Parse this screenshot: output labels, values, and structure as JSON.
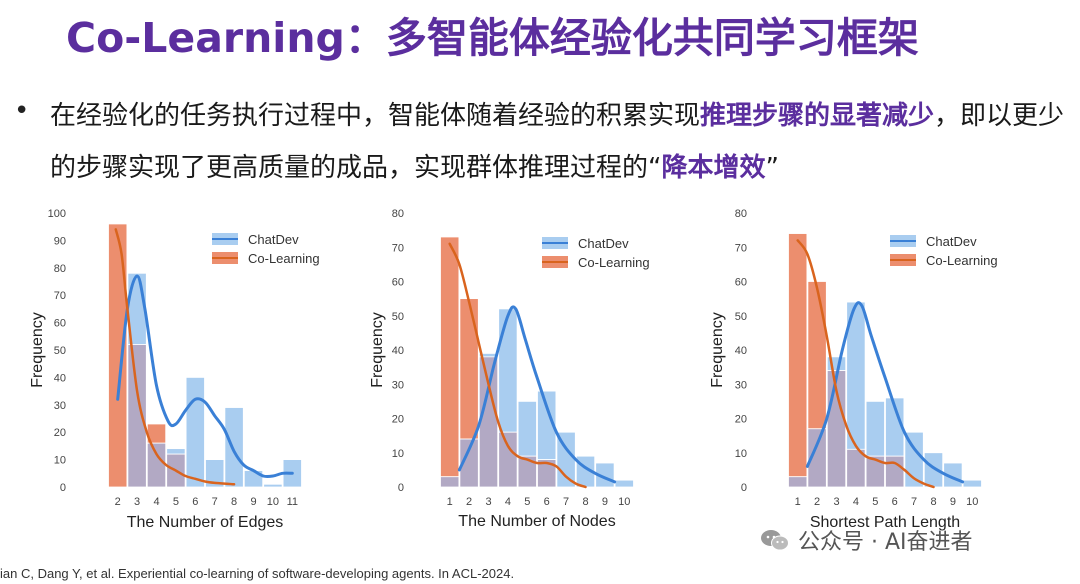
{
  "slide": {
    "title": "Co-Learning：多智能体经验化共同学习框架",
    "bullet_part1": "在经验化的任务执行过程中，智能体随着经验的积累实现",
    "bullet_highlight1": "推理步骤的显著减少",
    "bullet_part2": "，即以更少的步骤实现了更高质量的成品，实现群体推理过程的“",
    "bullet_highlight2": "降本增效",
    "bullet_part3": "”",
    "citation": "ian C, Dang Y, et al. Experiential co-learning of software-developing agents. In ACL-2024.",
    "watermark_text": "公众号 · AI奋进者",
    "watermark_icon": "wechat-icon"
  },
  "colors": {
    "title": "#5b2e9e",
    "chatdev_bar": "#a9cdf0",
    "colearning_bar": "#ec8e6e",
    "overlap_bar": "#b2a9c4",
    "chatdev_line": "#3a80d6",
    "colearning_line": "#d9641e"
  },
  "chart_data": [
    {
      "type": "bar",
      "xlabel": "The Number of Edges",
      "ylabel": "Frequency",
      "x_ticks": [
        "2",
        "3",
        "4",
        "5",
        "6",
        "7",
        "8",
        "9",
        "10",
        "11"
      ],
      "yticks": [
        0,
        10,
        20,
        30,
        40,
        50,
        60,
        70,
        80,
        90,
        100
      ],
      "ylim": [
        0,
        100
      ],
      "legend_position": "top-right",
      "series": [
        {
          "name": "ChatDev",
          "values": [
            0,
            78,
            16,
            14,
            40,
            10,
            29,
            6,
            1,
            10
          ]
        },
        {
          "name": "Co-Learning",
          "values": [
            96,
            52,
            23,
            12,
            0,
            0,
            0,
            0,
            0,
            0
          ]
        }
      ],
      "kde": [
        {
          "name": "ChatDev",
          "points": [
            [
              2,
              32
            ],
            [
              2.5,
              65
            ],
            [
              3,
              77
            ],
            [
              3.4,
              65
            ],
            [
              4,
              37
            ],
            [
              4.6,
              24
            ],
            [
              5,
              23
            ],
            [
              5.5,
              28
            ],
            [
              6,
              32
            ],
            [
              6.5,
              31
            ],
            [
              7,
              26
            ],
            [
              7.5,
              21
            ],
            [
              8,
              13
            ],
            [
              8.5,
              8
            ],
            [
              9,
              6
            ],
            [
              9.5,
              4
            ],
            [
              10,
              4
            ],
            [
              10.5,
              5
            ],
            [
              11,
              5
            ]
          ]
        },
        {
          "name": "Co-Learning",
          "points": [
            [
              1.9,
              94
            ],
            [
              2.2,
              85
            ],
            [
              2.5,
              65
            ],
            [
              3,
              35
            ],
            [
              3.5,
              20
            ],
            [
              4,
              12
            ],
            [
              4.5,
              8
            ],
            [
              5,
              6
            ],
            [
              5.5,
              4
            ],
            [
              6,
              3
            ],
            [
              6.5,
              2
            ],
            [
              7,
              1.5
            ],
            [
              8,
              1
            ]
          ]
        }
      ]
    },
    {
      "type": "bar",
      "xlabel": "The Number of Nodes",
      "ylabel": "Frequency",
      "x_ticks": [
        "1",
        "2",
        "3",
        "4",
        "5",
        "6",
        "7",
        "8",
        "9",
        "10"
      ],
      "yticks": [
        0,
        10,
        20,
        30,
        40,
        50,
        60,
        70,
        80
      ],
      "ylim": [
        0,
        80
      ],
      "legend_position": "top-right",
      "series": [
        {
          "name": "ChatDev",
          "values": [
            3,
            14,
            39,
            52,
            25,
            28,
            16,
            9,
            7,
            2
          ]
        },
        {
          "name": "Co-Learning",
          "values": [
            73,
            55,
            38,
            16,
            9,
            8,
            0,
            0,
            0,
            0
          ]
        }
      ],
      "kde": [
        {
          "name": "ChatDev",
          "points": [
            [
              1.5,
              5
            ],
            [
              2.5,
              18
            ],
            [
              3.3,
              36
            ],
            [
              4,
              50
            ],
            [
              4.4,
              52
            ],
            [
              4.9,
              43
            ],
            [
              5.5,
              32
            ],
            [
              6.5,
              16
            ],
            [
              7.5,
              8
            ],
            [
              8.5,
              4
            ],
            [
              9.5,
              1.5
            ]
          ]
        },
        {
          "name": "Co-Learning",
          "points": [
            [
              1,
              71
            ],
            [
              1.5,
              65
            ],
            [
              2,
              54
            ],
            [
              2.5,
              42
            ],
            [
              3,
              30
            ],
            [
              3.5,
              19
            ],
            [
              4,
              12
            ],
            [
              4.5,
              9
            ],
            [
              5,
              8
            ],
            [
              5.5,
              7
            ],
            [
              6,
              7
            ],
            [
              6.5,
              6
            ],
            [
              7,
              3
            ],
            [
              7.5,
              1
            ],
            [
              8,
              0
            ]
          ]
        }
      ]
    },
    {
      "type": "bar",
      "xlabel": "Shortest Path Length",
      "ylabel": "Frequency",
      "x_ticks": [
        "1",
        "2",
        "3",
        "4",
        "5",
        "6",
        "7",
        "8",
        "9",
        "10"
      ],
      "yticks": [
        0,
        10,
        20,
        30,
        40,
        50,
        60,
        70,
        80
      ],
      "ylim": [
        0,
        80
      ],
      "legend_position": "top-right",
      "series": [
        {
          "name": "ChatDev",
          "values": [
            3,
            17,
            38,
            54,
            25,
            26,
            16,
            10,
            7,
            2
          ]
        },
        {
          "name": "Co-Learning",
          "values": [
            74,
            60,
            34,
            11,
            9,
            9,
            0,
            0,
            0,
            0
          ]
        }
      ],
      "kde": [
        {
          "name": "ChatDev",
          "points": [
            [
              1.5,
              6
            ],
            [
              2.5,
              20
            ],
            [
              3.3,
              40
            ],
            [
              3.9,
              52
            ],
            [
              4.3,
              53
            ],
            [
              4.8,
              44
            ],
            [
              5.5,
              32
            ],
            [
              6.5,
              16
            ],
            [
              7.5,
              8
            ],
            [
              8.5,
              4
            ],
            [
              9.5,
              1.5
            ]
          ]
        },
        {
          "name": "Co-Learning",
          "points": [
            [
              1,
              72
            ],
            [
              1.5,
              68
            ],
            [
              2,
              58
            ],
            [
              2.5,
              44
            ],
            [
              3,
              28
            ],
            [
              3.5,
              18
            ],
            [
              4,
              12
            ],
            [
              4.5,
              9
            ],
            [
              5,
              8
            ],
            [
              5.5,
              7
            ],
            [
              6,
              7
            ],
            [
              6.5,
              5
            ],
            [
              7,
              2.5
            ],
            [
              7.5,
              1
            ],
            [
              8,
              0
            ]
          ]
        }
      ]
    }
  ]
}
